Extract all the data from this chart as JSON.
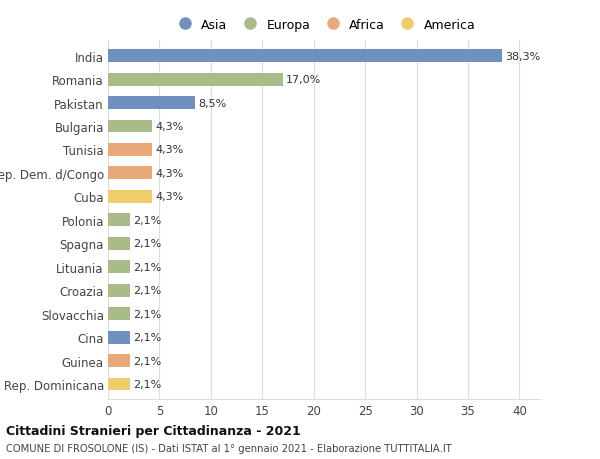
{
  "countries": [
    "India",
    "Romania",
    "Pakistan",
    "Bulgaria",
    "Tunisia",
    "Rep. Dem. d/Congo",
    "Cuba",
    "Polonia",
    "Spagna",
    "Lituania",
    "Croazia",
    "Slovacchia",
    "Cina",
    "Guinea",
    "Rep. Dominicana"
  ],
  "values": [
    38.3,
    17.0,
    8.5,
    4.3,
    4.3,
    4.3,
    4.3,
    2.1,
    2.1,
    2.1,
    2.1,
    2.1,
    2.1,
    2.1,
    2.1
  ],
  "labels": [
    "38,3%",
    "17,0%",
    "8,5%",
    "4,3%",
    "4,3%",
    "4,3%",
    "4,3%",
    "2,1%",
    "2,1%",
    "2,1%",
    "2,1%",
    "2,1%",
    "2,1%",
    "2,1%",
    "2,1%"
  ],
  "continents": [
    "Asia",
    "Europa",
    "Asia",
    "Europa",
    "Africa",
    "Africa",
    "America",
    "Europa",
    "Europa",
    "Europa",
    "Europa",
    "Europa",
    "Asia",
    "Africa",
    "America"
  ],
  "colors": {
    "Asia": "#7090c0",
    "Europa": "#a8bb88",
    "Africa": "#e8a878",
    "America": "#f0cc6a"
  },
  "legend_order": [
    "Asia",
    "Europa",
    "Africa",
    "America"
  ],
  "title1": "Cittadini Stranieri per Cittadinanza - 2021",
  "title2": "COMUNE DI FROSOLONE (IS) - Dati ISTAT al 1° gennaio 2021 - Elaborazione TUTTITALIA.IT",
  "xlim": [
    0,
    42
  ],
  "xticks": [
    0,
    5,
    10,
    15,
    20,
    25,
    30,
    35,
    40
  ],
  "background_color": "#ffffff",
  "grid_color": "#dddddd",
  "bar_height": 0.55
}
